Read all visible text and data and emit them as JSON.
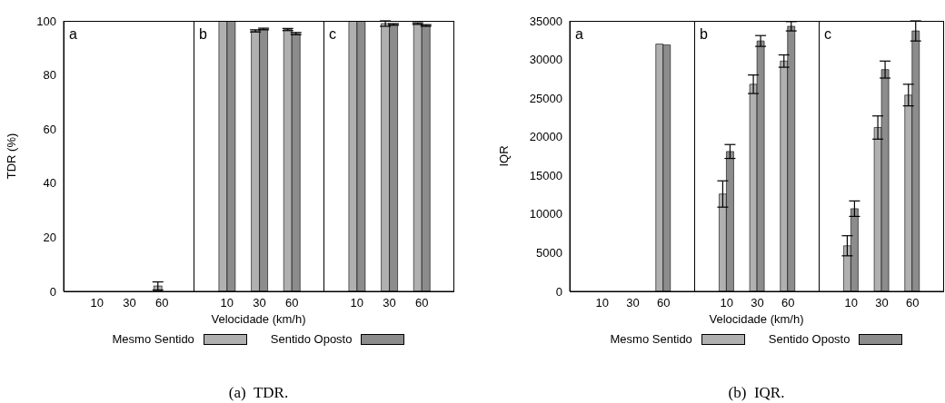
{
  "chart_data": [
    {
      "type": "bar",
      "categories": [
        "10",
        "30",
        "60"
      ],
      "ylabel": "TDR (%)",
      "ylim": [
        0,
        100
      ],
      "yticks": [
        0,
        20,
        40,
        60,
        80,
        100
      ],
      "annotations": [
        "a"
      ],
      "series": [
        {
          "color": "#b0b0b0",
          "values": [
            0,
            0,
            2
          ],
          "errors": [
            null,
            null,
            1.5
          ]
        },
        {
          "color": "#8c8c8c",
          "values": [
            0,
            0,
            0
          ]
        }
      ]
    },
    {
      "type": "bar",
      "categories": [
        "10",
        "30",
        "60"
      ],
      "xlabel": "Velocidade (km/h)",
      "legend": "bottom",
      "ylim": [
        0,
        100
      ],
      "tick_labels": "x",
      "annotations": [
        "b",
        "(a)  TDR."
      ],
      "series": [
        {
          "name": "Mesmo Sentido",
          "color": "#b0b0b0",
          "values": [
            100,
            96.3,
            96.8
          ],
          "errors": [
            null,
            0.4,
            0.4
          ]
        },
        {
          "name": "Sentido Oposto",
          "color": "#8c8c8c",
          "values": [
            100,
            97,
            95.3
          ],
          "errors": [
            null,
            0.3,
            0.4
          ]
        }
      ]
    },
    {
      "type": "bar",
      "categories": [
        "10",
        "30",
        "60"
      ],
      "ylim": [
        0,
        100
      ],
      "tick_labels": "x",
      "annotations": [
        "c"
      ],
      "series": [
        {
          "color": "#b0b0b0",
          "values": [
            100,
            99,
            99
          ],
          "errors": [
            null,
            1,
            0.3
          ]
        },
        {
          "color": "#8c8c8c",
          "values": [
            100,
            98.7,
            98.3
          ],
          "errors": [
            null,
            0.3,
            0.3
          ]
        }
      ]
    },
    {
      "type": "bar",
      "categories": [
        "10",
        "30",
        "60"
      ],
      "ylabel": "IQR",
      "ylim": [
        0,
        35000
      ],
      "yticks": [
        0,
        5000,
        10000,
        15000,
        20000,
        25000,
        30000,
        35000
      ],
      "annotations": [
        "a"
      ],
      "series": [
        {
          "color": "#b0b0b0",
          "values": [
            0,
            0,
            32000
          ]
        },
        {
          "color": "#8c8c8c",
          "values": [
            0,
            0,
            31900
          ]
        }
      ]
    },
    {
      "type": "bar",
      "categories": [
        "10",
        "30",
        "60"
      ],
      "xlabel": "Velocidade (km/h)",
      "legend": "bottom",
      "ylim": [
        0,
        35000
      ],
      "tick_labels": "x",
      "annotations": [
        "b",
        "(b)  IQR."
      ],
      "series": [
        {
          "name": "Mesmo Sentido",
          "color": "#b0b0b0",
          "values": [
            12600,
            26800,
            29800
          ],
          "errors": [
            1700,
            1200,
            800
          ]
        },
        {
          "name": "Sentido Oposto",
          "color": "#8c8c8c",
          "values": [
            18100,
            32400,
            34300
          ],
          "errors": [
            900,
            700,
            600
          ]
        }
      ]
    },
    {
      "type": "bar",
      "categories": [
        "10",
        "30",
        "60"
      ],
      "ylim": [
        0,
        35000
      ],
      "tick_labels": "x",
      "annotations": [
        "c"
      ],
      "series": [
        {
          "color": "#b0b0b0",
          "values": [
            5900,
            21200,
            25400
          ],
          "errors": [
            1300,
            1500,
            1400
          ]
        },
        {
          "color": "#8c8c8c",
          "values": [
            10700,
            28700,
            33700
          ],
          "errors": [
            1000,
            1100,
            1300
          ]
        }
      ]
    }
  ]
}
